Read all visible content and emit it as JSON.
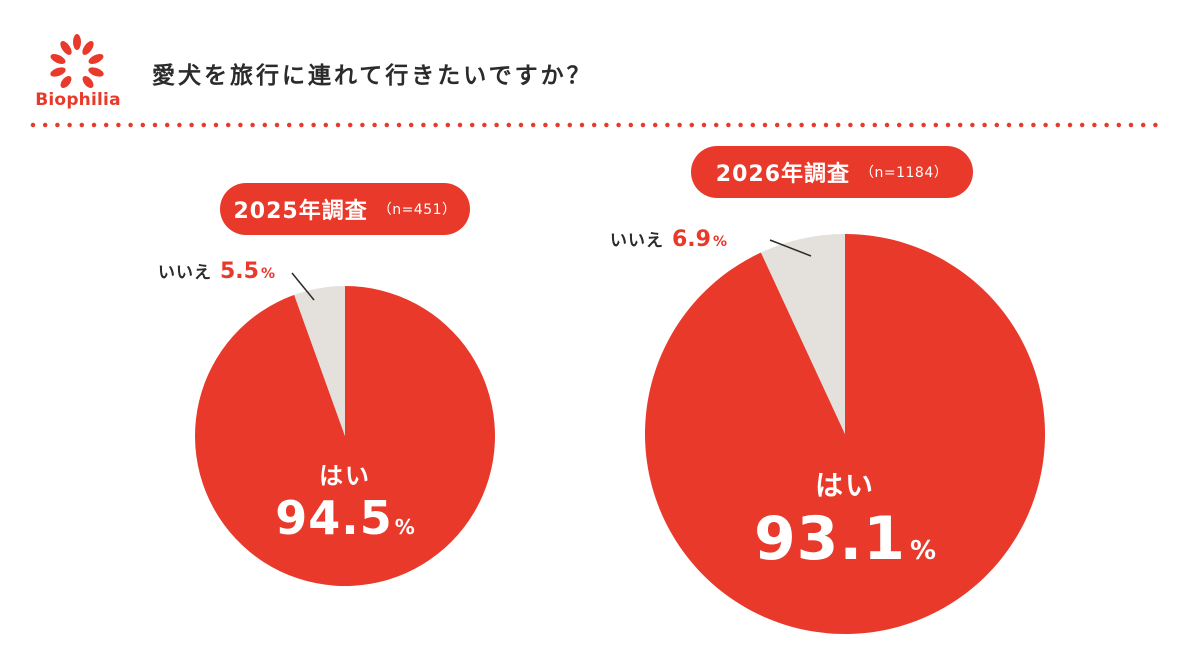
{
  "logo": {
    "text": "Biophilia"
  },
  "title": "愛犬を旅行に連れて行きたいですか？",
  "colors": {
    "accent": "#e8392b",
    "no_slice": "#e4e0dc",
    "text": "#2b2b2b"
  },
  "chart_data": [
    {
      "type": "pie",
      "title": "2025年調査",
      "n_label": "（n=451）",
      "slices": [
        {
          "label": "はい",
          "value": 94.5,
          "display": "94.5",
          "unit": "%"
        },
        {
          "label": "いいえ",
          "value": 5.5,
          "display": "5.5",
          "unit": "%"
        }
      ]
    },
    {
      "type": "pie",
      "title": "2026年調査",
      "n_label": "（n=1184）",
      "slices": [
        {
          "label": "はい",
          "value": 93.1,
          "display": "93.1",
          "unit": "%"
        },
        {
          "label": "いいえ",
          "value": 6.9,
          "display": "6.9",
          "unit": "%"
        }
      ]
    }
  ]
}
